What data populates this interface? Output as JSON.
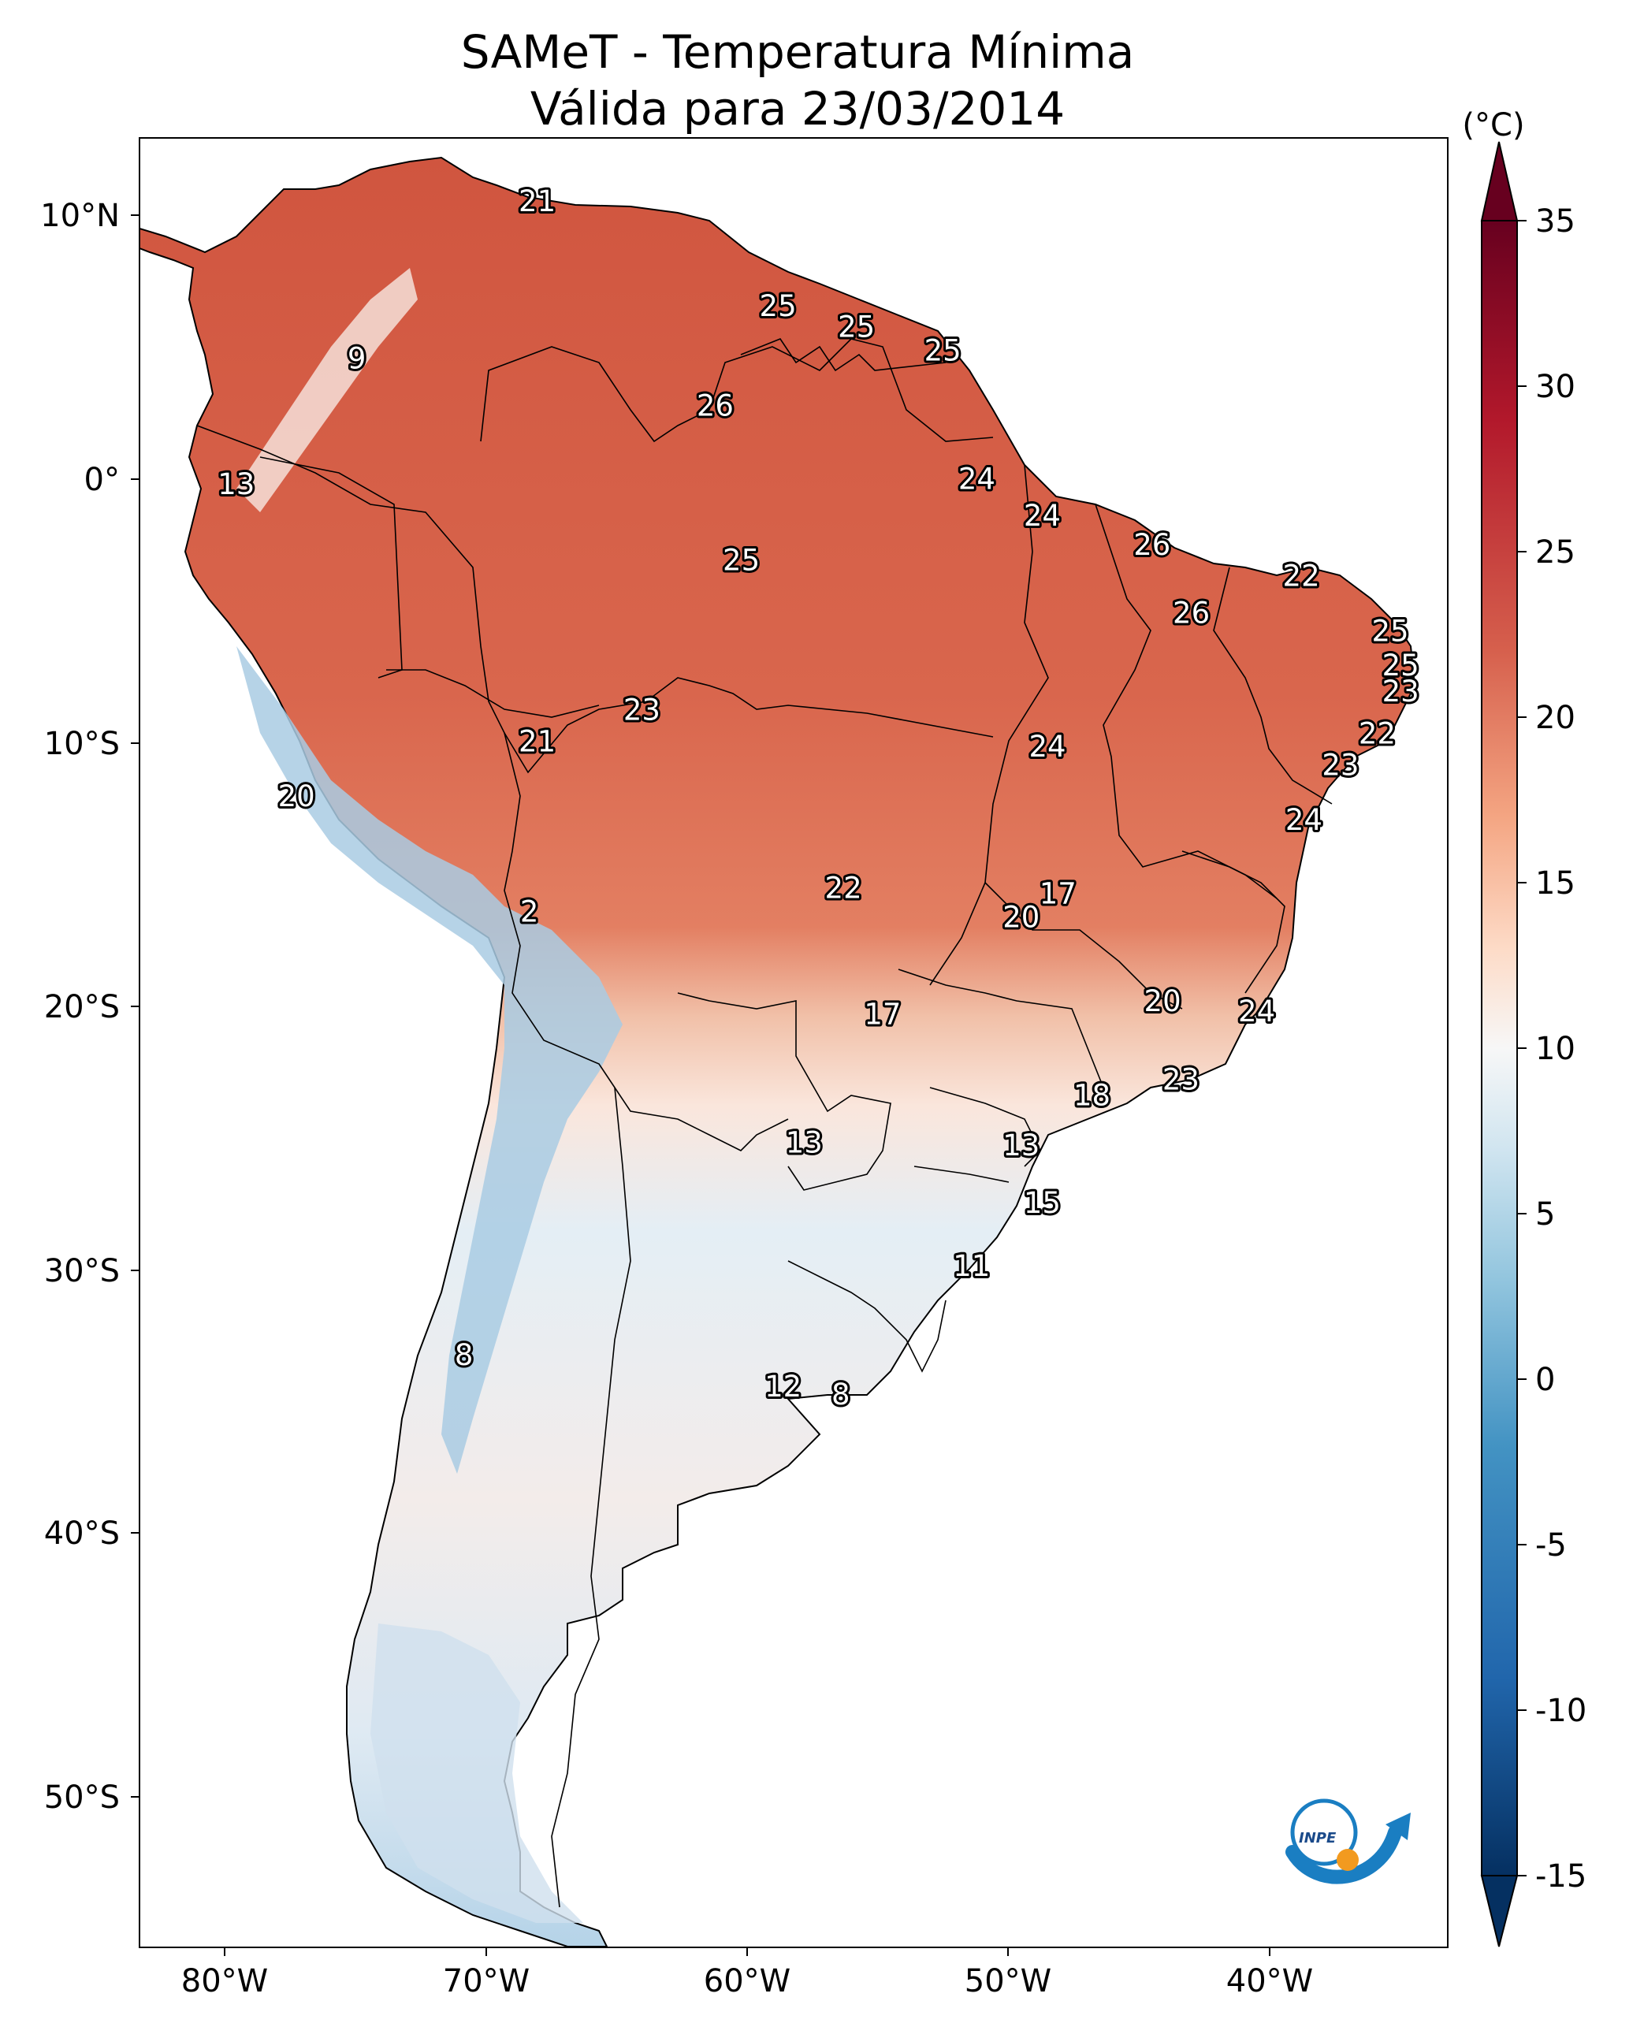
{
  "title": {
    "line1": "SAMeT - Temperatura Mínima",
    "line2": "Válida para 23/03/2014"
  },
  "colorbar": {
    "unit": "(°C)",
    "ticks": [
      "35",
      "30",
      "25",
      "20",
      "15",
      "10",
      "5",
      "0",
      "-5",
      "-10",
      "-15"
    ],
    "range": [
      -15,
      35
    ],
    "colormap": "RdBu_r",
    "colors": [
      "#053061",
      "#2166ac",
      "#4393c3",
      "#92c5de",
      "#d1e5f0",
      "#f7f7f7",
      "#fddbc7",
      "#f4a582",
      "#d6604d",
      "#b2182b",
      "#67001f"
    ]
  },
  "axes": {
    "lon_ticks": [
      "80°W",
      "70°W",
      "60°W",
      "50°W",
      "40°W"
    ],
    "lat_ticks": [
      "10°N",
      "0°",
      "10°S",
      "20°S",
      "30°S",
      "40°S",
      "50°S"
    ],
    "lon_range": [
      -83,
      -33
    ],
    "lat_range": [
      -56,
      13
    ]
  },
  "logo": {
    "text": "INPE"
  },
  "station_labels": [
    {
      "value": "21",
      "lon": -67.8,
      "lat": 10.6
    },
    {
      "value": "9",
      "lon": -74.7,
      "lat": 4.6
    },
    {
      "value": "25",
      "lon": -58.6,
      "lat": 6.6
    },
    {
      "value": "25",
      "lon": -55.6,
      "lat": 5.8
    },
    {
      "value": "25",
      "lon": -52.3,
      "lat": 4.9
    },
    {
      "value": "26",
      "lon": -61.0,
      "lat": 2.8
    },
    {
      "value": "13",
      "lon": -79.3,
      "lat": -0.2
    },
    {
      "value": "24",
      "lon": -51.0,
      "lat": 0.0
    },
    {
      "value": "24",
      "lon": -48.5,
      "lat": -1.4
    },
    {
      "value": "25",
      "lon": -60.0,
      "lat": -3.1
    },
    {
      "value": "26",
      "lon": -44.3,
      "lat": -2.5
    },
    {
      "value": "22",
      "lon": -38.6,
      "lat": -3.7
    },
    {
      "value": "26",
      "lon": -42.8,
      "lat": -5.1
    },
    {
      "value": "25",
      "lon": -35.2,
      "lat": -5.8
    },
    {
      "value": "25",
      "lon": -34.8,
      "lat": -7.1
    },
    {
      "value": "23",
      "lon": -34.8,
      "lat": -8.1
    },
    {
      "value": "23",
      "lon": -63.8,
      "lat": -8.8
    },
    {
      "value": "21",
      "lon": -67.8,
      "lat": -10.0
    },
    {
      "value": "24",
      "lon": -48.3,
      "lat": -10.2
    },
    {
      "value": "22",
      "lon": -35.7,
      "lat": -9.7
    },
    {
      "value": "23",
      "lon": -37.1,
      "lat": -10.9
    },
    {
      "value": "20",
      "lon": -77.0,
      "lat": -12.1
    },
    {
      "value": "24",
      "lon": -38.5,
      "lat": -13.0
    },
    {
      "value": "17",
      "lon": -47.9,
      "lat": -15.8
    },
    {
      "value": "22",
      "lon": -56.1,
      "lat": -15.6
    },
    {
      "value": "2",
      "lon": -68.1,
      "lat": -16.5
    },
    {
      "value": "20",
      "lon": -49.3,
      "lat": -16.7
    },
    {
      "value": "20",
      "lon": -43.9,
      "lat": -19.9
    },
    {
      "value": "17",
      "lon": -54.6,
      "lat": -20.4
    },
    {
      "value": "24",
      "lon": -40.3,
      "lat": -20.3
    },
    {
      "value": "23",
      "lon": -43.2,
      "lat": -22.9
    },
    {
      "value": "18",
      "lon": -46.6,
      "lat": -23.5
    },
    {
      "value": "13",
      "lon": -57.6,
      "lat": -25.3
    },
    {
      "value": "13",
      "lon": -49.3,
      "lat": -25.4
    },
    {
      "value": "15",
      "lon": -48.5,
      "lat": -27.6
    },
    {
      "value": "11",
      "lon": -51.2,
      "lat": -30.0
    },
    {
      "value": "8",
      "lon": -70.6,
      "lat": -33.4
    },
    {
      "value": "12",
      "lon": -58.4,
      "lat": -34.6
    },
    {
      "value": "8",
      "lon": -56.2,
      "lat": -34.9
    }
  ]
}
